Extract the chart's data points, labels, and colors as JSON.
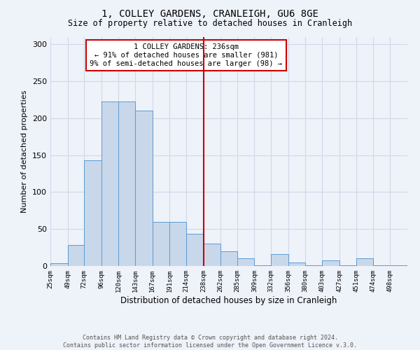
{
  "title": "1, COLLEY GARDENS, CRANLEIGH, GU6 8GE",
  "subtitle": "Size of property relative to detached houses in Cranleigh",
  "xlabel": "Distribution of detached houses by size in Cranleigh",
  "ylabel": "Number of detached properties",
  "categories": [
    "25sqm",
    "49sqm",
    "72sqm",
    "96sqm",
    "120sqm",
    "143sqm",
    "167sqm",
    "191sqm",
    "214sqm",
    "238sqm",
    "262sqm",
    "285sqm",
    "309sqm",
    "332sqm",
    "356sqm",
    "380sqm",
    "403sqm",
    "427sqm",
    "451sqm",
    "474sqm",
    "498sqm"
  ],
  "bin_edges": [
    25,
    49,
    72,
    96,
    120,
    143,
    167,
    191,
    214,
    238,
    262,
    285,
    309,
    332,
    356,
    380,
    403,
    427,
    451,
    474,
    498,
    522
  ],
  "bar_heights": [
    4,
    28,
    143,
    222,
    222,
    210,
    60,
    60,
    44,
    30,
    20,
    10,
    1,
    16,
    5,
    1,
    8,
    1,
    10,
    1,
    1
  ],
  "bar_color": "#c8d8ea",
  "bar_edge_color": "#5b9bd5",
  "ylim": [
    0,
    310
  ],
  "yticks": [
    0,
    50,
    100,
    150,
    200,
    250,
    300
  ],
  "vline_x": 238,
  "vline_color": "#cc0000",
  "annotation_title": "1 COLLEY GARDENS: 236sqm",
  "annotation_line1": "← 91% of detached houses are smaller (981)",
  "annotation_line2": "9% of semi-detached houses are larger (98) →",
  "annotation_box_color": "#cc0000",
  "footer1": "Contains HM Land Registry data © Crown copyright and database right 2024.",
  "footer2": "Contains public sector information licensed under the Open Government Licence v.3.0.",
  "grid_color": "#d0d8e8",
  "background_color": "#eef2f9"
}
